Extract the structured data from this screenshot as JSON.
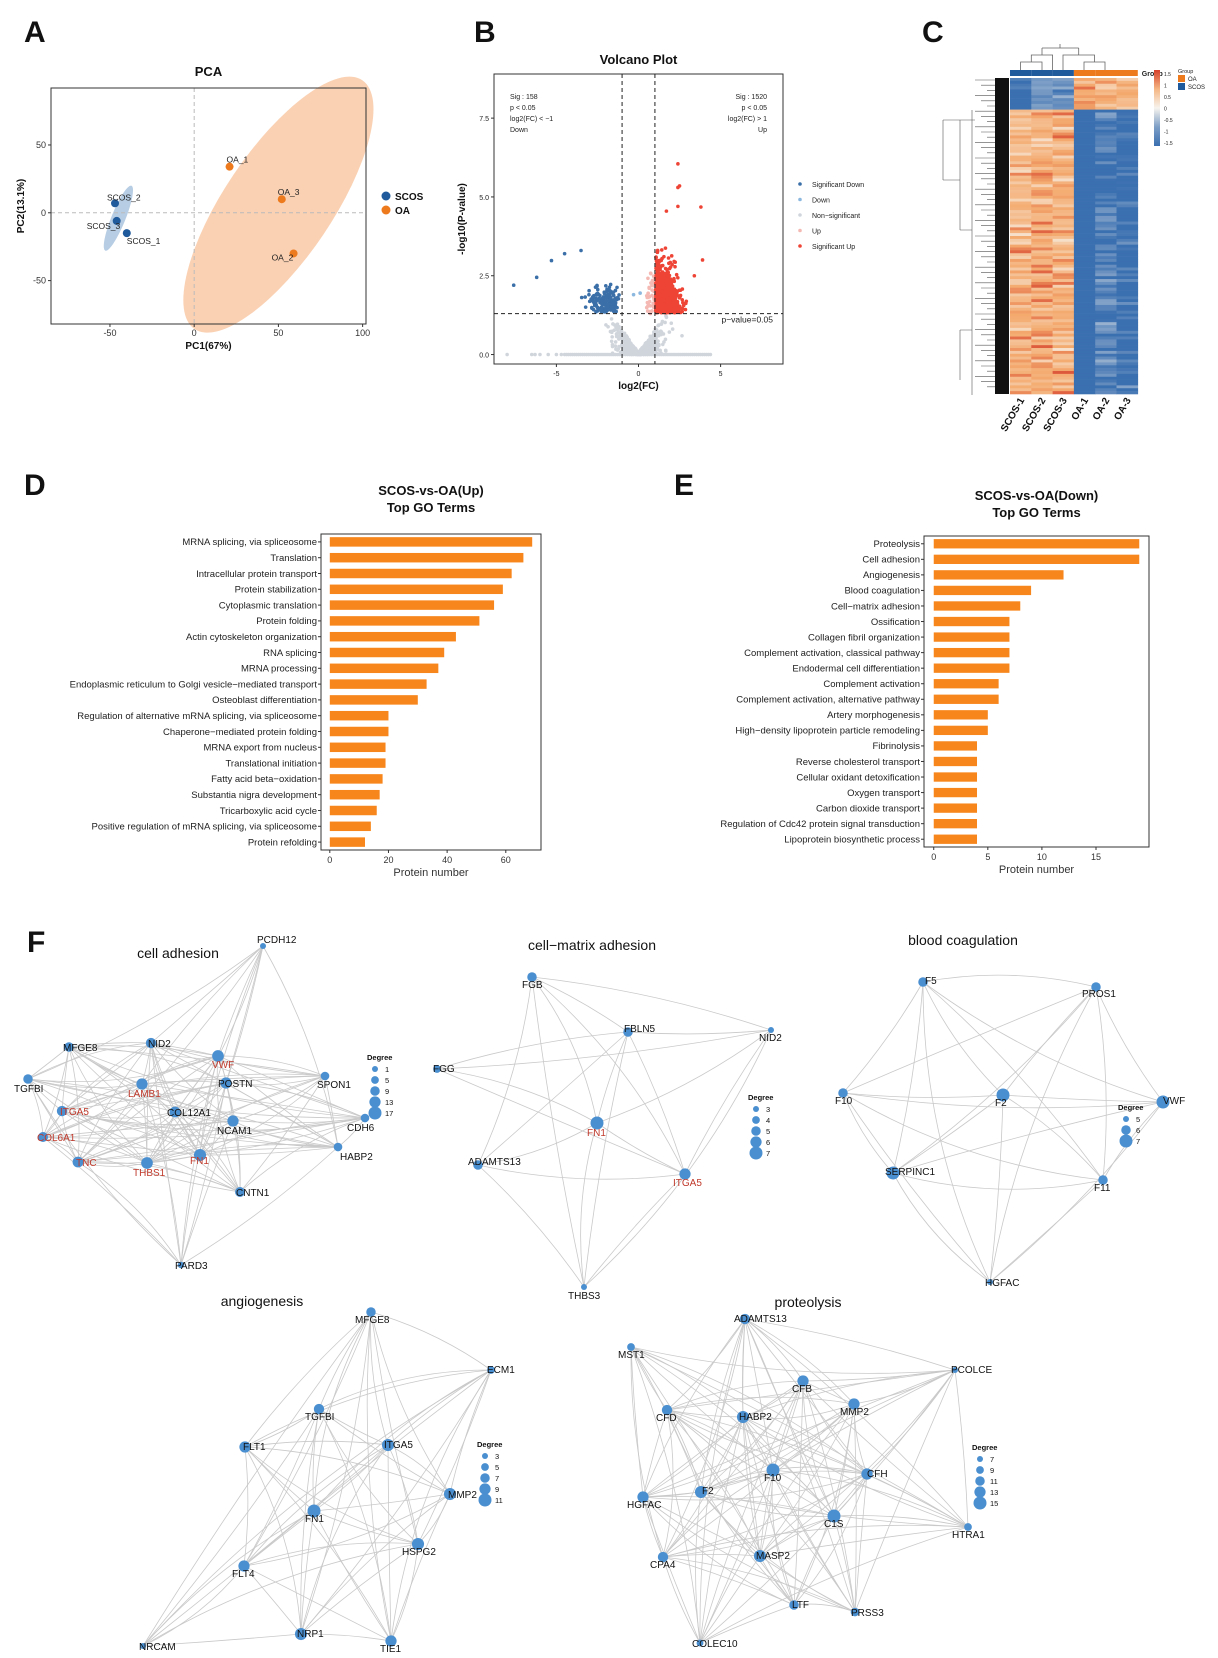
{
  "panels": {
    "A": "A",
    "B": "B",
    "C": "C",
    "D": "D",
    "E": "E",
    "F": "F"
  },
  "chart_data": [
    {
      "id": "pca",
      "type": "scatter",
      "title": "PCA",
      "xlabel": "PC1(67%)",
      "ylabel": "PC2(13.1%)",
      "xlim": [
        -85,
        102
      ],
      "ylim": [
        -82,
        92
      ],
      "xticks": [
        -50,
        0,
        50,
        100
      ],
      "yticks": [
        -50,
        0,
        50
      ],
      "reference_lines": {
        "x": 0,
        "y": 0
      },
      "legend": {
        "position": "right",
        "entries": [
          {
            "name": "SCOS",
            "color": "#1f5a9c"
          },
          {
            "name": "OA",
            "color": "#ee7a1e"
          }
        ]
      },
      "series": [
        {
          "name": "SCOS",
          "color": "#1f5a9c",
          "ellipse_color": "#a9c4de",
          "points": [
            {
              "label": "SCOS_1",
              "x": -40,
              "y": -15
            },
            {
              "label": "SCOS_2",
              "x": -47,
              "y": 7
            },
            {
              "label": "SCOS_3",
              "x": -46,
              "y": -6
            }
          ]
        },
        {
          "name": "OA",
          "color": "#ee7a1e",
          "ellipse_color": "#f9c9a6",
          "points": [
            {
              "label": "OA_1",
              "x": 21,
              "y": 34
            },
            {
              "label": "OA_2",
              "x": 59,
              "y": -30
            },
            {
              "label": "OA_3",
              "x": 52,
              "y": 10
            }
          ]
        }
      ]
    },
    {
      "id": "volcano",
      "type": "scatter",
      "title": "Volcano Plot",
      "xlabel": "log2(FC)",
      "ylabel": "-log10(P-value)",
      "xlim": [
        -8.8,
        8.8
      ],
      "ylim": [
        -0.3,
        8.9
      ],
      "xticks": [
        -5,
        0,
        5
      ],
      "yticks": [
        0.0,
        2.5,
        5.0,
        7.5
      ],
      "thresholds": {
        "log2fc": [
          -1,
          1
        ],
        "pvalue_line": 1.3,
        "pvalue_label": "p−value=0.05"
      },
      "annotations": {
        "down": [
          "Sig : 158",
          "p < 0.05",
          "log2(FC) < −1",
          "Down"
        ],
        "up": [
          "Sig : 1520",
          "p < 0.05",
          "log2(FC) > 1",
          "Up"
        ]
      },
      "legend": {
        "position": "right",
        "entries": [
          {
            "name": "Significant Down",
            "color": "#3a6fa8"
          },
          {
            "name": "Down",
            "color": "#8cb8df"
          },
          {
            "name": "Non−significant",
            "color": "#d0d5dc"
          },
          {
            "name": "Up",
            "color": "#f5b9b4"
          },
          {
            "name": "Significant Up",
            "color": "#ee4436"
          }
        ]
      },
      "counts": {
        "significant_down": 158,
        "significant_up": 1520
      }
    },
    {
      "id": "heatmap",
      "type": "heatmap",
      "columns": [
        "SCOS-1",
        "SCOS-2",
        "SCOS-3",
        "OA-1",
        "OA-2",
        "OA-3"
      ],
      "column_groups": [
        "SCOS",
        "SCOS",
        "SCOS",
        "OA",
        "OA",
        "OA"
      ],
      "annotation_label": "Group",
      "group_legend": {
        "title": "Group",
        "entries": [
          {
            "name": "OA",
            "color": "#ee7a1e"
          },
          {
            "name": "SCOS",
            "color": "#1f5a9c"
          }
        ]
      },
      "color_scale": {
        "ticks": [
          1.5,
          1,
          0.5,
          0,
          -0.5,
          -1,
          -1.5
        ],
        "low": "#3a6fb0",
        "mid": "#f7f4ee",
        "high": "#d6402b"
      },
      "row_clusters": [
        {
          "fraction": 0.1,
          "mean": [
            -1.2,
            -0.8,
            -0.9,
            0.9,
            0.8,
            0.7
          ]
        },
        {
          "fraction": 0.9,
          "mean": [
            0.7,
            0.8,
            0.8,
            -1.3,
            -1.0,
            -1.2
          ]
        }
      ]
    },
    {
      "id": "go_up",
      "type": "bar",
      "orientation": "horizontal",
      "title": "SCOS-vs-OA(Up)",
      "subtitle": "Top GO Terms",
      "xlabel": "Protein number",
      "xlim": [
        -3,
        72
      ],
      "xticks": [
        0,
        20,
        40,
        60
      ],
      "color": "#f7861d",
      "categories": [
        "MRNA splicing, via spliceosome",
        "Translation",
        "Intracellular protein transport",
        "Protein stabilization",
        "Cytoplasmic translation",
        "Protein folding",
        "Actin cytoskeleton organization",
        "RNA splicing",
        "MRNA processing",
        "Endoplasmic reticulum to Golgi vesicle−mediated transport",
        "Osteoblast differentiation",
        "Regulation of alternative mRNA splicing, via spliceosome",
        "Chaperone−mediated protein folding",
        "MRNA export from nucleus",
        "Translational initiation",
        "Fatty acid beta−oxidation",
        "Substantia nigra development",
        "Tricarboxylic acid cycle",
        "Positive regulation of mRNA splicing, via spliceosome",
        "Protein refolding"
      ],
      "values": [
        69,
        66,
        62,
        59,
        56,
        51,
        43,
        39,
        37,
        33,
        30,
        20,
        20,
        19,
        19,
        18,
        17,
        16,
        14,
        12
      ]
    },
    {
      "id": "go_down",
      "type": "bar",
      "orientation": "horizontal",
      "title": "SCOS-vs-OA(Down)",
      "subtitle": "Top GO Terms",
      "xlabel": "Protein number",
      "xlim": [
        -0.9,
        19.9
      ],
      "xticks": [
        0,
        5,
        10,
        15
      ],
      "color": "#f7861d",
      "categories": [
        "Proteolysis",
        "Cell adhesion",
        "Angiogenesis",
        "Blood coagulation",
        "Cell−matrix adhesion",
        "Ossification",
        "Collagen fibril organization",
        "Complement activation, classical pathway",
        "Endodermal cell differentiation",
        "Complement activation",
        "Complement activation, alternative pathway",
        "Artery morphogenesis",
        "High−density lipoprotein particle remodeling",
        "Fibrinolysis",
        "Reverse cholesterol transport",
        "Cellular oxidant detoxification",
        "Oxygen transport",
        "Carbon dioxide transport",
        "Regulation of Cdc42 protein signal transduction",
        "Lipoprotein biosynthetic process"
      ],
      "values": [
        19,
        19,
        12,
        9,
        8,
        7,
        7,
        7,
        7,
        6,
        6,
        5,
        5,
        4,
        4,
        4,
        4,
        4,
        4,
        4
      ]
    }
  ],
  "networks": [
    {
      "id": "cell-adhesion",
      "title": "cell adhesion",
      "legend_title": "Degree",
      "legend_values": [
        1,
        5,
        9,
        13,
        17
      ],
      "highlight_color": "#c0392b",
      "node_color": "#4a8fd0",
      "nodes": [
        {
          "id": "PCDH12",
          "deg": 1
        },
        {
          "id": "MFGE8",
          "deg": 9
        },
        {
          "id": "NID2",
          "deg": 11
        },
        {
          "id": "VWF",
          "deg": 14,
          "hl": true
        },
        {
          "id": "TGFBI",
          "deg": 9
        },
        {
          "id": "LAMB1",
          "deg": 13,
          "hl": true
        },
        {
          "id": "POSTN",
          "deg": 13
        },
        {
          "id": "SPON1",
          "deg": 7
        },
        {
          "id": "ITGA5",
          "deg": 11,
          "hl": true
        },
        {
          "id": "COL12A1",
          "deg": 12
        },
        {
          "id": "NCAM1",
          "deg": 13
        },
        {
          "id": "CDH6",
          "deg": 7
        },
        {
          "id": "COL6A1",
          "deg": 10,
          "hl": true
        },
        {
          "id": "TNC",
          "deg": 12,
          "hl": true
        },
        {
          "id": "THBS1",
          "deg": 14,
          "hl": true
        },
        {
          "id": "FN1",
          "deg": 15,
          "hl": true
        },
        {
          "id": "HABP2",
          "deg": 7
        },
        {
          "id": "CNTN1",
          "deg": 10
        },
        {
          "id": "PARD3",
          "deg": 2
        }
      ]
    },
    {
      "id": "cell-matrix-adhesion",
      "title": "cell−matrix adhesion",
      "legend_title": "Degree",
      "legend_values": [
        3,
        4,
        5,
        6,
        7
      ],
      "nodes": [
        {
          "id": "FGB",
          "deg": 5
        },
        {
          "id": "FBLN5",
          "deg": 5
        },
        {
          "id": "NID2",
          "deg": 3
        },
        {
          "id": "FGG",
          "deg": 4
        },
        {
          "id": "FN1",
          "deg": 7,
          "hl": true
        },
        {
          "id": "ADAMTS13",
          "deg": 5
        },
        {
          "id": "ITGA5",
          "deg": 6,
          "hl": true
        },
        {
          "id": "THBS3",
          "deg": 3
        }
      ]
    },
    {
      "id": "blood-coagulation",
      "title": "blood coagulation",
      "legend_title": "Degree",
      "legend_values": [
        5,
        6,
        7
      ],
      "nodes": [
        {
          "id": "F5",
          "deg": 6
        },
        {
          "id": "PROS1",
          "deg": 6
        },
        {
          "id": "F10",
          "deg": 6
        },
        {
          "id": "F2",
          "deg": 7
        },
        {
          "id": "VWF",
          "deg": 7
        },
        {
          "id": "SERPINC1",
          "deg": 7
        },
        {
          "id": "F11",
          "deg": 6
        },
        {
          "id": "HGFAC",
          "deg": 5
        }
      ]
    },
    {
      "id": "angiogenesis",
      "title": "angiogenesis",
      "legend_title": "Degree",
      "legend_values": [
        3,
        5,
        7,
        9,
        11
      ],
      "nodes": [
        {
          "id": "MFGE8",
          "deg": 7
        },
        {
          "id": "ECM1",
          "deg": 5
        },
        {
          "id": "TGFBI",
          "deg": 8
        },
        {
          "id": "FLT1",
          "deg": 9
        },
        {
          "id": "ITGA5",
          "deg": 10
        },
        {
          "id": "MMP2",
          "deg": 10
        },
        {
          "id": "FN1",
          "deg": 11
        },
        {
          "id": "HSPG2",
          "deg": 10
        },
        {
          "id": "FLT4",
          "deg": 9
        },
        {
          "id": "NRCAM",
          "deg": 3
        },
        {
          "id": "NRP1",
          "deg": 10
        },
        {
          "id": "TIE1",
          "deg": 9
        }
      ]
    },
    {
      "id": "proteolysis",
      "title": "proteolysis",
      "legend_title": "Degree",
      "legend_values": [
        7,
        9,
        11,
        13,
        15
      ],
      "nodes": [
        {
          "id": "ADAMTS13",
          "deg": 12
        },
        {
          "id": "MST1",
          "deg": 9
        },
        {
          "id": "PCOLCE",
          "deg": 7
        },
        {
          "id": "CFB",
          "deg": 13
        },
        {
          "id": "CFD",
          "deg": 12
        },
        {
          "id": "HABP2",
          "deg": 14
        },
        {
          "id": "MMP2",
          "deg": 13
        },
        {
          "id": "F10",
          "deg": 15
        },
        {
          "id": "CFH",
          "deg": 13
        },
        {
          "id": "HGFAC",
          "deg": 13
        },
        {
          "id": "F2",
          "deg": 14
        },
        {
          "id": "C1S",
          "deg": 15
        },
        {
          "id": "HTRA1",
          "deg": 9
        },
        {
          "id": "MASP2",
          "deg": 14
        },
        {
          "id": "CPA4",
          "deg": 12
        },
        {
          "id": "LTF",
          "deg": 11
        },
        {
          "id": "PRSS3",
          "deg": 10
        },
        {
          "id": "COLEC10",
          "deg": 8
        }
      ]
    }
  ]
}
